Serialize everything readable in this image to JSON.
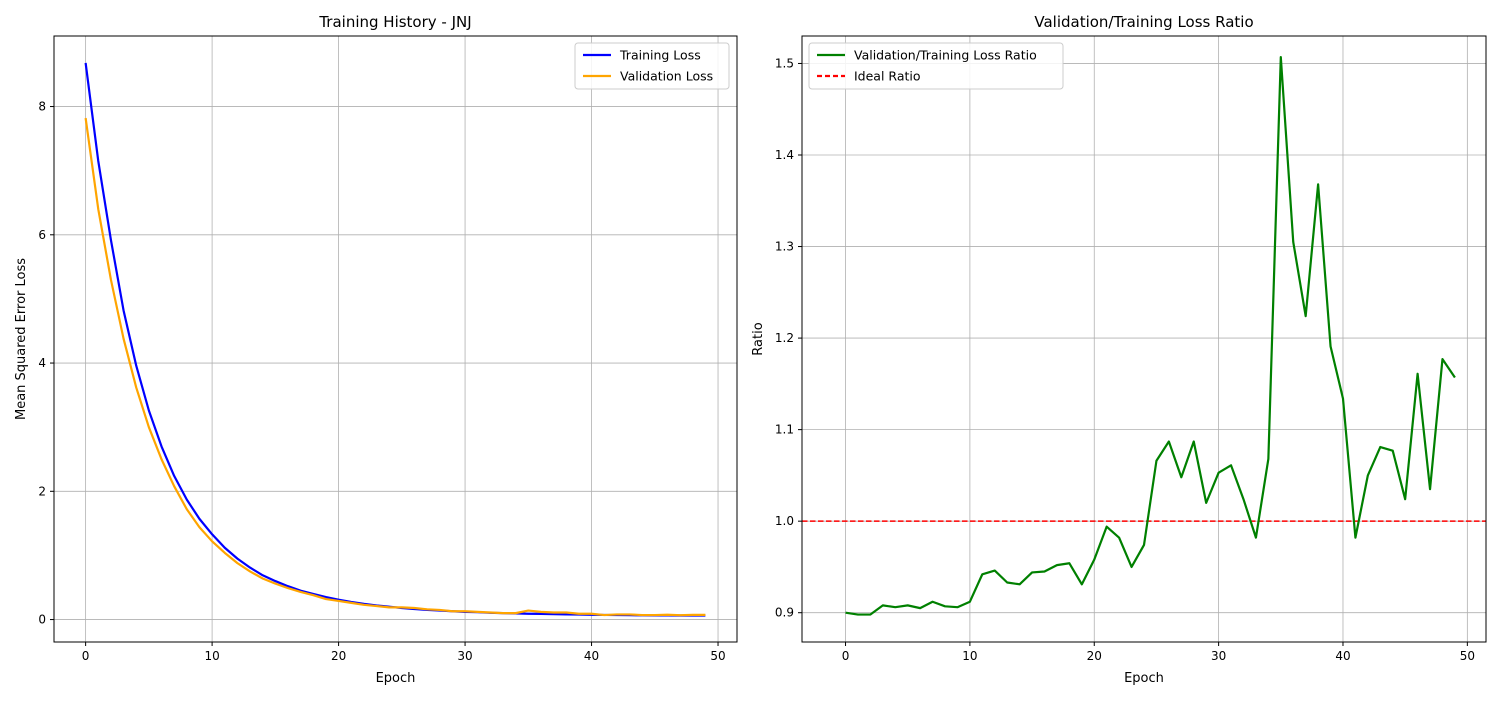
{
  "chart_data": [
    {
      "type": "line",
      "title": "Training History - JNJ",
      "xlabel": "Epoch",
      "ylabel": "Mean Squared Error Loss",
      "xlim": [
        -2.5,
        51.5
      ],
      "ylim": [
        -0.35,
        9.1
      ],
      "xticks": [
        0,
        10,
        20,
        30,
        40,
        50
      ],
      "yticks": [
        0,
        2,
        4,
        6,
        8
      ],
      "grid": true,
      "legend_position": "upper right",
      "x": [
        0,
        1,
        2,
        3,
        4,
        5,
        6,
        7,
        8,
        9,
        10,
        11,
        12,
        13,
        14,
        15,
        16,
        17,
        18,
        19,
        20,
        21,
        22,
        23,
        24,
        25,
        26,
        27,
        28,
        29,
        30,
        31,
        32,
        33,
        34,
        35,
        36,
        37,
        38,
        39,
        40,
        41,
        42,
        43,
        44,
        45,
        46,
        47,
        48,
        49
      ],
      "series": [
        {
          "name": "Training Loss",
          "color": "#0000ff",
          "values": [
            8.68,
            7.15,
            5.92,
            4.82,
            3.96,
            3.26,
            2.7,
            2.24,
            1.87,
            1.57,
            1.33,
            1.12,
            0.95,
            0.81,
            0.69,
            0.6,
            0.52,
            0.45,
            0.4,
            0.35,
            0.31,
            0.275,
            0.245,
            0.22,
            0.2,
            0.18,
            0.165,
            0.15,
            0.14,
            0.13,
            0.12,
            0.115,
            0.105,
            0.1,
            0.095,
            0.09,
            0.088,
            0.085,
            0.08,
            0.078,
            0.075,
            0.072,
            0.07,
            0.068,
            0.066,
            0.065,
            0.064,
            0.063,
            0.062,
            0.062
          ]
        },
        {
          "name": "Validation Loss",
          "color": "#ffa500",
          "values": [
            7.82,
            6.4,
            5.3,
            4.38,
            3.62,
            3.0,
            2.5,
            2.08,
            1.72,
            1.44,
            1.22,
            1.04,
            0.88,
            0.75,
            0.64,
            0.56,
            0.49,
            0.43,
            0.38,
            0.32,
            0.29,
            0.26,
            0.23,
            0.21,
            0.19,
            0.19,
            0.18,
            0.16,
            0.15,
            0.13,
            0.13,
            0.12,
            0.11,
            0.1,
            0.1,
            0.14,
            0.12,
            0.11,
            0.11,
            0.09,
            0.09,
            0.07,
            0.08,
            0.08,
            0.07,
            0.07,
            0.075,
            0.068,
            0.073,
            0.073
          ]
        }
      ]
    },
    {
      "type": "line",
      "title": "Validation/Training Loss Ratio",
      "xlabel": "Epoch",
      "ylabel": "Ratio",
      "xlim": [
        -3.5,
        51.5
      ],
      "ylim": [
        0.868,
        1.53
      ],
      "xticks": [
        0,
        10,
        20,
        30,
        40,
        50
      ],
      "yticks": [
        0.9,
        1.0,
        1.1,
        1.2,
        1.3,
        1.4,
        1.5
      ],
      "grid": true,
      "legend_position": "upper left",
      "x": [
        0,
        1,
        2,
        3,
        4,
        5,
        6,
        7,
        8,
        9,
        10,
        11,
        12,
        13,
        14,
        15,
        16,
        17,
        18,
        19,
        20,
        21,
        22,
        23,
        24,
        25,
        26,
        27,
        28,
        29,
        30,
        31,
        32,
        33,
        34,
        35,
        36,
        37,
        38,
        39,
        40,
        41,
        42,
        43,
        44,
        45,
        46,
        47,
        48,
        49
      ],
      "series": [
        {
          "name": "Validation/Training Loss Ratio",
          "color": "#008000",
          "values": [
            0.9,
            0.898,
            0.898,
            0.908,
            0.906,
            0.908,
            0.905,
            0.912,
            0.907,
            0.906,
            0.912,
            0.942,
            0.946,
            0.933,
            0.931,
            0.944,
            0.945,
            0.952,
            0.954,
            0.931,
            0.958,
            0.994,
            0.982,
            0.95,
            0.974,
            1.066,
            1.087,
            1.048,
            1.087,
            1.02,
            1.053,
            1.061,
            1.024,
            0.982,
            1.068,
            1.507,
            1.305,
            1.224,
            1.368,
            1.191,
            1.134,
            0.982,
            1.05,
            1.081,
            1.077,
            1.024,
            1.161,
            1.035,
            1.177,
            1.157
          ]
        }
      ],
      "reference_line": {
        "name": "Ideal Ratio",
        "y": 1.0,
        "color": "#ff0000",
        "style": "dashed"
      }
    }
  ]
}
